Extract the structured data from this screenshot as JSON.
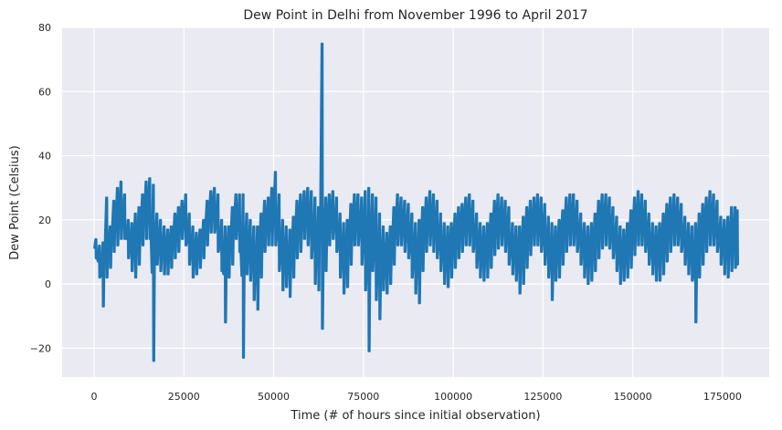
{
  "chart_data": {
    "type": "line",
    "title": "Dew Point in Delhi from November 1996 to April 2017",
    "xlabel": "Time (# of hours since initial observation)",
    "ylabel": "Dew Point (Celsius)",
    "xlim": [
      -8900,
      188000
    ],
    "ylim": [
      -29,
      80
    ],
    "xticks": [
      0,
      25000,
      50000,
      75000,
      100000,
      125000,
      150000,
      175000
    ],
    "yticks": [
      -20,
      0,
      20,
      40,
      60,
      80
    ],
    "grid": true,
    "background": "#EAEAF2",
    "grid_color": "#ffffff",
    "series": [
      {
        "color": "#1F77B4",
        "x": [
          0,
          1000,
          2000,
          3000,
          4000,
          5000,
          6000,
          7000,
          8000,
          9000,
          10000,
          11000,
          12000,
          13000,
          14000,
          15000,
          16000,
          17000,
          18000,
          19000,
          20000,
          21000,
          22000,
          23000,
          24000,
          25000,
          26000,
          27000,
          28000,
          29000,
          30000,
          31000,
          32000,
          33000,
          34000,
          35000,
          36000,
          37000,
          38000,
          39000,
          40000,
          41000,
          42000,
          43000,
          44000,
          45000,
          46000,
          47000,
          48000,
          49000,
          50000,
          51000,
          52000,
          53000,
          54000,
          55000,
          56000,
          57000,
          58000,
          59000,
          60000,
          61000,
          62000,
          63000,
          64000,
          65000,
          66000,
          67000,
          68000,
          69000,
          70000,
          71000,
          72000,
          73000,
          74000,
          75000,
          76000,
          77000,
          78000,
          79000,
          80000,
          81000,
          82000,
          83000,
          84000,
          85000,
          86000,
          87000,
          88000,
          89000,
          90000,
          91000,
          92000,
          93000,
          94000,
          95000,
          96000,
          97000,
          98000,
          99000,
          100000,
          101000,
          102000,
          103000,
          104000,
          105000,
          106000,
          107000,
          108000,
          109000,
          110000,
          111000,
          112000,
          113000,
          114000,
          115000,
          116000,
          117000,
          118000,
          119000,
          120000,
          121000,
          122000,
          123000,
          124000,
          125000,
          126000,
          127000,
          128000,
          129000,
          130000,
          131000,
          132000,
          133000,
          134000,
          135000,
          136000,
          137000,
          138000,
          139000,
          140000,
          141000,
          142000,
          143000,
          144000,
          145000,
          146000,
          147000,
          148000,
          149000,
          150000,
          151000,
          152000,
          153000,
          154000,
          155000,
          156000,
          157000,
          158000,
          159000,
          160000,
          161000,
          162000,
          163000,
          164000,
          165000,
          166000,
          167000,
          168000,
          169000,
          170000,
          171000,
          172000,
          173000,
          174000,
          175000,
          176000,
          177000,
          178000,
          179000
        ],
        "hi": [
          14,
          12,
          13,
          27,
          18,
          26,
          30,
          32,
          28,
          20,
          19,
          22,
          24,
          28,
          32,
          33,
          31,
          22,
          20,
          18,
          17,
          18,
          22,
          24,
          26,
          28,
          22,
          18,
          16,
          17,
          20,
          26,
          29,
          30,
          28,
          20,
          18,
          18,
          24,
          28,
          28,
          28,
          22,
          20,
          18,
          18,
          22,
          26,
          27,
          30,
          35,
          28,
          20,
          18,
          17,
          21,
          26,
          28,
          29,
          30,
          29,
          27,
          24,
          75,
          27,
          28,
          29,
          27,
          22,
          19,
          20,
          25,
          28,
          28,
          27,
          29,
          30,
          28,
          27,
          22,
          18,
          16,
          18,
          24,
          28,
          27,
          26,
          25,
          22,
          19,
          20,
          24,
          27,
          29,
          28,
          26,
          22,
          19,
          18,
          19,
          22,
          24,
          25,
          27,
          28,
          26,
          22,
          19,
          18,
          19,
          22,
          26,
          28,
          27,
          26,
          24,
          19,
          18,
          18,
          21,
          24,
          26,
          27,
          28,
          27,
          25,
          21,
          19,
          18,
          20,
          23,
          27,
          28,
          28,
          26,
          22,
          19,
          18,
          19,
          22,
          26,
          28,
          28,
          27,
          24,
          21,
          18,
          17,
          19,
          23,
          27,
          29,
          28,
          26,
          22,
          19,
          18,
          19,
          22,
          25,
          27,
          28,
          27,
          25,
          21,
          19,
          18,
          19,
          22,
          25,
          27,
          29,
          28,
          26,
          21,
          20,
          21,
          24,
          24,
          23
        ],
        "lo": [
          8,
          2,
          -7,
          2,
          5,
          10,
          12,
          14,
          14,
          8,
          4,
          2,
          6,
          12,
          14,
          14,
          -24,
          6,
          4,
          3,
          3,
          5,
          8,
          10,
          14,
          12,
          6,
          2,
          3,
          5,
          8,
          12,
          16,
          16,
          10,
          4,
          -12,
          2,
          6,
          14,
          10,
          -23,
          3,
          1,
          -5,
          -8,
          2,
          10,
          12,
          12,
          12,
          4,
          -2,
          -1,
          -4,
          2,
          8,
          10,
          14,
          12,
          8,
          0,
          -2,
          -14,
          4,
          12,
          14,
          10,
          2,
          -3,
          -1,
          6,
          12,
          12,
          6,
          -2,
          -21,
          4,
          -5,
          -11,
          -2,
          -3,
          0,
          6,
          12,
          12,
          10,
          8,
          2,
          -3,
          -6,
          4,
          10,
          12,
          10,
          8,
          4,
          0,
          -1,
          2,
          5,
          8,
          10,
          12,
          12,
          10,
          5,
          2,
          1,
          2,
          5,
          9,
          11,
          12,
          10,
          6,
          3,
          1,
          -3,
          0,
          5,
          9,
          12,
          12,
          10,
          6,
          2,
          -5,
          1,
          2,
          6,
          10,
          12,
          12,
          10,
          6,
          2,
          0,
          1,
          4,
          8,
          11,
          12,
          11,
          8,
          4,
          0,
          1,
          2,
          5,
          9,
          12,
          12,
          10,
          6,
          3,
          1,
          1,
          3,
          7,
          10,
          12,
          12,
          10,
          6,
          3,
          1,
          -12,
          2,
          6,
          10,
          12,
          12,
          10,
          6,
          3,
          2,
          4,
          5,
          6
        ]
      }
    ]
  }
}
